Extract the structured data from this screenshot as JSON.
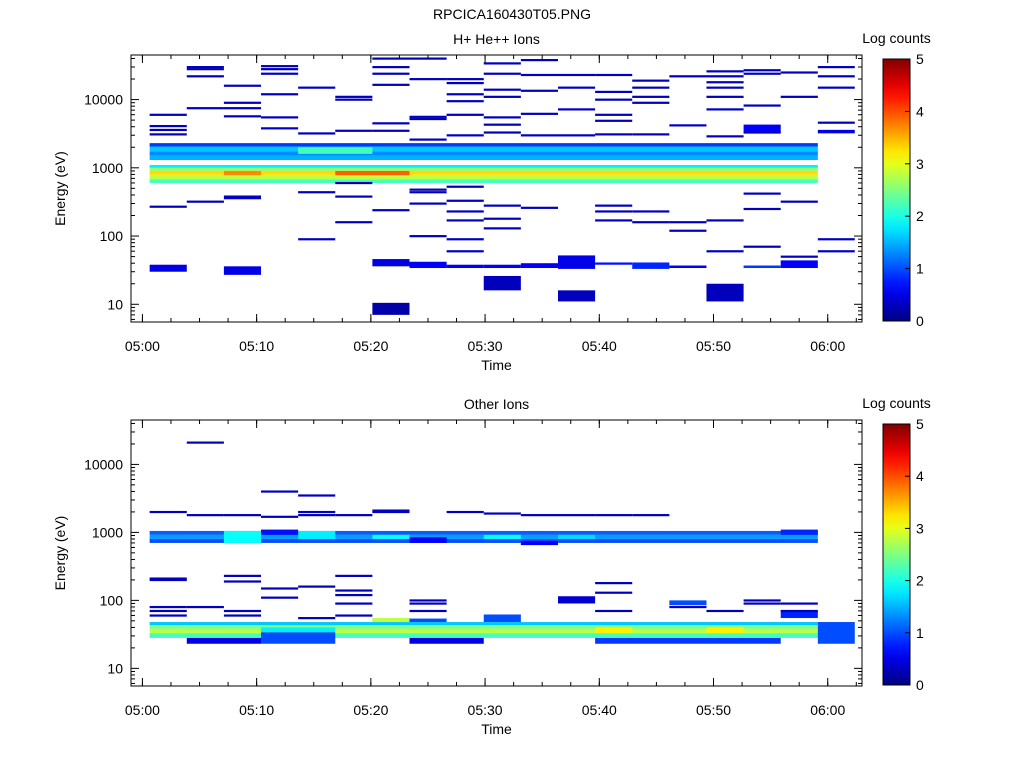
{
  "figure_title": "RPCICA160430T05.PNG",
  "chart_data": [
    {
      "type": "heatmap",
      "title": "H+ He++ Ions",
      "xlabel": "Time",
      "ylabel": "Energy (eV)",
      "x_scale": "time",
      "y_scale": "log",
      "xlim": [
        "04:59:00",
        "06:03:00"
      ],
      "ylim": [
        5.5,
        45000
      ],
      "x_ticks": [
        "05:00",
        "05:10",
        "05:20",
        "05:30",
        "05:40",
        "05:50",
        "06:00"
      ],
      "y_ticks": [
        10,
        100,
        1000,
        10000
      ],
      "y_tick_labels": [
        "10",
        "100",
        "1000",
        "10000"
      ],
      "colorbar": {
        "label": "Log counts",
        "range": [
          0,
          5
        ],
        "ticks": [
          "0",
          "1",
          "2",
          "3",
          "4",
          "5"
        ],
        "colormap": "jet"
      },
      "time_bins": [
        "05:02:15",
        "05:05:30",
        "05:08:45",
        "05:12:00",
        "05:15:15",
        "05:18:30",
        "05:21:45",
        "05:25:00",
        "05:28:15",
        "05:31:30",
        "05:34:45",
        "05:38:00",
        "05:41:15",
        "05:44:30",
        "05:47:45",
        "05:51:00",
        "05:54:15",
        "05:57:30",
        "06:00:45"
      ],
      "cells": [
        {
          "t0": 0,
          "t1": 18,
          "e": [
            600,
            680
          ],
          "z": 2.2
        },
        {
          "t0": 0,
          "t1": 18,
          "e": [
            680,
            790
          ],
          "z": 2.8
        },
        {
          "t0": 0,
          "t1": 18,
          "e": [
            790,
            900
          ],
          "z": 3.3
        },
        {
          "t0": 0,
          "t1": 18,
          "e": [
            900,
            1000
          ],
          "z": 2.6
        },
        {
          "t0": 0,
          "t1": 18,
          "e": [
            1000,
            1100
          ],
          "z": 1.8
        },
        {
          "t0": 0,
          "t1": 18,
          "e": [
            1300,
            1500
          ],
          "z": 1.5
        },
        {
          "t0": 0,
          "t1": 18,
          "e": [
            1500,
            1750
          ],
          "z": 1.3
        },
        {
          "t0": 0,
          "t1": 18,
          "e": [
            1750,
            2050
          ],
          "z": 1.6
        },
        {
          "t0": 0,
          "t1": 18,
          "e": [
            2050,
            2300
          ],
          "z": 0.9
        },
        {
          "t0": 2,
          "t1": 3,
          "e": [
            780,
            900
          ],
          "z": 3.7
        },
        {
          "t0": 5,
          "t1": 7,
          "e": [
            780,
            900
          ],
          "z": 3.9
        },
        {
          "t0": 4,
          "t1": 6,
          "e": [
            1600,
            2000
          ],
          "z": 2.2
        },
        {
          "t0": 0,
          "t1": 1,
          "e": [
            30,
            38
          ],
          "z": 0.5
        },
        {
          "t0": 2,
          "t1": 3,
          "e": [
            27,
            36
          ],
          "z": 0.5
        },
        {
          "t0": 6,
          "t1": 7,
          "e": [
            7,
            10.5
          ],
          "z": 0.2
        },
        {
          "t0": 6,
          "t1": 7,
          "e": [
            36,
            46
          ],
          "z": 0.5
        },
        {
          "t0": 7,
          "t1": 8,
          "e": [
            34,
            42
          ],
          "z": 0.6
        },
        {
          "t0": 8,
          "t1": 9,
          "e": [
            34,
            38
          ],
          "z": 0.6
        },
        {
          "t0": 9,
          "t1": 10,
          "e": [
            16,
            26
          ],
          "z": 0.3
        },
        {
          "t0": 9,
          "t1": 10,
          "e": [
            34,
            38
          ],
          "z": 0.6
        },
        {
          "t0": 10,
          "t1": 11,
          "e": [
            34,
            40
          ],
          "z": 0.6
        },
        {
          "t0": 11,
          "t1": 12,
          "e": [
            11,
            16
          ],
          "z": 0.3
        },
        {
          "t0": 11,
          "t1": 12,
          "e": [
            33,
            52
          ],
          "z": 0.5
        },
        {
          "t0": 12,
          "t1": 13,
          "e": [
            38,
            41
          ],
          "z": 0.7
        },
        {
          "t0": 13,
          "t1": 14,
          "e": [
            33,
            41
          ],
          "z": 0.8
        },
        {
          "t0": 14,
          "t1": 15,
          "e": [
            34,
            37
          ],
          "z": 0.6
        },
        {
          "t0": 15,
          "t1": 16,
          "e": [
            11,
            20
          ],
          "z": 0.3
        },
        {
          "t0": 16,
          "t1": 17,
          "e": [
            34,
            37
          ],
          "z": 0.9
        },
        {
          "t0": 17,
          "t1": 18,
          "e": [
            34,
            44
          ],
          "z": 0.6
        },
        {
          "t0": 16,
          "t1": 17,
          "e": [
            3300,
            4300
          ],
          "z": 0.6
        },
        {
          "t0": 18,
          "t1": 19,
          "e": [
            3200,
            3600
          ],
          "z": 0.5
        }
      ],
      "lines": [
        [
          0,
          270
        ],
        [
          0,
          3100
        ],
        [
          0,
          3600
        ],
        [
          0,
          4100
        ],
        [
          0,
          6000
        ],
        [
          1,
          320
        ],
        [
          1,
          7500
        ],
        [
          1,
          22000
        ],
        [
          1,
          28000
        ],
        [
          1,
          30000
        ],
        [
          2,
          360
        ],
        [
          2,
          380
        ],
        [
          2,
          5700
        ],
        [
          2,
          7500
        ],
        [
          2,
          9000
        ],
        [
          2,
          16000
        ],
        [
          3,
          3800
        ],
        [
          3,
          5500
        ],
        [
          3,
          12000
        ],
        [
          3,
          24000
        ],
        [
          3,
          28000
        ],
        [
          3,
          31000
        ],
        [
          4,
          90
        ],
        [
          4,
          440
        ],
        [
          4,
          3200
        ],
        [
          4,
          15000
        ],
        [
          5,
          160
        ],
        [
          5,
          380
        ],
        [
          5,
          3500
        ],
        [
          5,
          10000
        ],
        [
          5,
          11000
        ],
        [
          5,
          600
        ],
        [
          6,
          240
        ],
        [
          6,
          3500
        ],
        [
          6,
          4500
        ],
        [
          6,
          16500
        ],
        [
          6,
          24000
        ],
        [
          6,
          30000
        ],
        [
          6,
          40000
        ],
        [
          7,
          100
        ],
        [
          7,
          300
        ],
        [
          7,
          440
        ],
        [
          7,
          480
        ],
        [
          7,
          2600
        ],
        [
          7,
          5200
        ],
        [
          7,
          5600
        ],
        [
          7,
          20000
        ],
        [
          7,
          40000
        ],
        [
          8,
          60
        ],
        [
          8,
          90
        ],
        [
          8,
          170
        ],
        [
          8,
          230
        ],
        [
          8,
          330
        ],
        [
          8,
          530
        ],
        [
          8,
          3000
        ],
        [
          8,
          6000
        ],
        [
          8,
          9500
        ],
        [
          8,
          12000
        ],
        [
          8,
          17500
        ],
        [
          8,
          20000
        ],
        [
          9,
          130
        ],
        [
          9,
          180
        ],
        [
          9,
          280
        ],
        [
          9,
          3300
        ],
        [
          9,
          4300
        ],
        [
          9,
          5500
        ],
        [
          9,
          11000
        ],
        [
          9,
          14000
        ],
        [
          9,
          24000
        ],
        [
          9,
          34000
        ],
        [
          10,
          260
        ],
        [
          10,
          3000
        ],
        [
          10,
          6200
        ],
        [
          10,
          13500
        ],
        [
          10,
          23000
        ],
        [
          10,
          38000
        ],
        [
          11,
          3000
        ],
        [
          11,
          7200
        ],
        [
          11,
          15000
        ],
        [
          11,
          23000
        ],
        [
          12,
          170
        ],
        [
          12,
          230
        ],
        [
          12,
          280
        ],
        [
          12,
          3100
        ],
        [
          12,
          4900
        ],
        [
          12,
          6000
        ],
        [
          12,
          10000
        ],
        [
          12,
          13000
        ],
        [
          12,
          23000
        ],
        [
          13,
          160
        ],
        [
          13,
          230
        ],
        [
          13,
          3100
        ],
        [
          13,
          9000
        ],
        [
          13,
          11000
        ],
        [
          13,
          15000
        ],
        [
          13,
          19000
        ],
        [
          14,
          160
        ],
        [
          14,
          120
        ],
        [
          14,
          4200
        ],
        [
          14,
          22000
        ],
        [
          15,
          60
        ],
        [
          15,
          170
        ],
        [
          15,
          2900
        ],
        [
          15,
          7200
        ],
        [
          15,
          11000
        ],
        [
          15,
          15000
        ],
        [
          15,
          18000
        ],
        [
          15,
          22000
        ],
        [
          15,
          26000
        ],
        [
          16,
          70
        ],
        [
          16,
          250
        ],
        [
          16,
          420
        ],
        [
          16,
          3300
        ],
        [
          16,
          8200
        ],
        [
          16,
          24000
        ],
        [
          16,
          27000
        ],
        [
          17,
          50
        ],
        [
          17,
          320
        ],
        [
          17,
          11000
        ],
        [
          17,
          25000
        ],
        [
          18,
          60
        ],
        [
          18,
          90
        ],
        [
          18,
          4600
        ],
        [
          18,
          15000
        ],
        [
          18,
          22000
        ],
        [
          18,
          30000
        ]
      ]
    },
    {
      "type": "heatmap",
      "title": "Other Ions",
      "xlabel": "Time",
      "ylabel": "Energy (eV)",
      "x_scale": "time",
      "y_scale": "log",
      "xlim": [
        "04:59:00",
        "06:03:00"
      ],
      "ylim": [
        5.5,
        45000
      ],
      "x_ticks": [
        "05:00",
        "05:10",
        "05:20",
        "05:30",
        "05:40",
        "05:50",
        "06:00"
      ],
      "y_ticks": [
        10,
        100,
        1000,
        10000
      ],
      "y_tick_labels": [
        "10",
        "100",
        "1000",
        "10000"
      ],
      "colorbar": {
        "label": "Log counts",
        "range": [
          0,
          5
        ],
        "ticks": [
          "0",
          "1",
          "2",
          "3",
          "4",
          "5"
        ],
        "colormap": "jet"
      },
      "time_bins": [
        "05:02:15",
        "05:05:30",
        "05:08:45",
        "05:12:00",
        "05:15:15",
        "05:18:30",
        "05:21:45",
        "05:25:00",
        "05:28:15",
        "05:31:30",
        "05:34:45",
        "05:38:00",
        "05:41:15",
        "05:44:30",
        "05:47:45",
        "05:51:00",
        "05:54:15",
        "05:57:30",
        "06:00:45"
      ],
      "cells": [
        {
          "t0": 0,
          "t1": 18,
          "e": [
            700,
            800
          ],
          "z": 1.0
        },
        {
          "t0": 0,
          "t1": 18,
          "e": [
            800,
            920
          ],
          "z": 1.4
        },
        {
          "t0": 0,
          "t1": 18,
          "e": [
            920,
            1050
          ],
          "z": 1.1
        },
        {
          "t0": 2,
          "t1": 3,
          "e": [
            700,
            1050
          ],
          "z": 1.9
        },
        {
          "t0": 4,
          "t1": 5,
          "e": [
            800,
            1050
          ],
          "z": 1.8
        },
        {
          "t0": 6,
          "t1": 7,
          "e": [
            800,
            920
          ],
          "z": 1.9
        },
        {
          "t0": 9,
          "t1": 10,
          "e": [
            800,
            920
          ],
          "z": 1.9
        },
        {
          "t0": 11,
          "t1": 12,
          "e": [
            800,
            920
          ],
          "z": 1.7
        },
        {
          "t0": 3,
          "t1": 4,
          "e": [
            920,
            1100
          ],
          "z": 0.7
        },
        {
          "t0": 7,
          "t1": 8,
          "e": [
            700,
            850
          ],
          "z": 0.6
        },
        {
          "t0": 10,
          "t1": 11,
          "e": [
            650,
            750
          ],
          "z": 0.6
        },
        {
          "t0": 17,
          "t1": 18,
          "e": [
            920,
            1100
          ],
          "z": 0.8
        },
        {
          "t0": 0,
          "t1": 18,
          "e": [
            28,
            33
          ],
          "z": 2.2
        },
        {
          "t0": 0,
          "t1": 18,
          "e": [
            33,
            38
          ],
          "z": 2.8
        },
        {
          "t0": 0,
          "t1": 18,
          "e": [
            38,
            43
          ],
          "z": 2.5
        },
        {
          "t0": 0,
          "t1": 18,
          "e": [
            43,
            48
          ],
          "z": 1.6
        },
        {
          "t0": 1,
          "t1": 3,
          "e": [
            23,
            28
          ],
          "z": 0.5
        },
        {
          "t0": 3,
          "t1": 5,
          "e": [
            23,
            34
          ],
          "z": 1.0
        },
        {
          "t0": 3,
          "t1": 5,
          "e": [
            34,
            40
          ],
          "z": 1.8
        },
        {
          "t0": 6,
          "t1": 7,
          "e": [
            48,
            55
          ],
          "z": 2.8
        },
        {
          "t0": 7,
          "t1": 8,
          "e": [
            48,
            54
          ],
          "z": 1.0
        },
        {
          "t0": 9,
          "t1": 10,
          "e": [
            48,
            62
          ],
          "z": 1.0
        },
        {
          "t0": 7,
          "t1": 9,
          "e": [
            23,
            28
          ],
          "z": 0.5
        },
        {
          "t0": 12,
          "t1": 17,
          "e": [
            23,
            28
          ],
          "z": 0.9
        },
        {
          "t0": 12,
          "t1": 13,
          "e": [
            33,
            40
          ],
          "z": 3.2
        },
        {
          "t0": 15,
          "t1": 16,
          "e": [
            33,
            40
          ],
          "z": 3.2
        },
        {
          "t0": 11,
          "t1": 12,
          "e": [
            90,
            115
          ],
          "z": 0.4
        },
        {
          "t0": 14,
          "t1": 15,
          "e": [
            85,
            100
          ],
          "z": 1.0
        },
        {
          "t0": 17,
          "t1": 18,
          "e": [
            55,
            70
          ],
          "z": 0.8
        },
        {
          "t0": 18,
          "t1": 19,
          "e": [
            23,
            48
          ],
          "z": 1.0
        }
      ],
      "lines": [
        [
          0,
          70
        ],
        [
          0,
          80
        ],
        [
          0,
          200
        ],
        [
          0,
          210
        ],
        [
          0,
          2000
        ],
        [
          0,
          60
        ],
        [
          1,
          80
        ],
        [
          1,
          1800
        ],
        [
          1,
          21000
        ],
        [
          2,
          60
        ],
        [
          2,
          70
        ],
        [
          2,
          190
        ],
        [
          2,
          230
        ],
        [
          2,
          1800
        ],
        [
          3,
          110
        ],
        [
          3,
          150
        ],
        [
          3,
          1700
        ],
        [
          3,
          4000
        ],
        [
          4,
          55
        ],
        [
          4,
          160
        ],
        [
          4,
          1800
        ],
        [
          4,
          2000
        ],
        [
          4,
          3500
        ],
        [
          5,
          60
        ],
        [
          5,
          90
        ],
        [
          5,
          120
        ],
        [
          5,
          140
        ],
        [
          5,
          230
        ],
        [
          5,
          1800
        ],
        [
          6,
          2000
        ],
        [
          6,
          2100
        ],
        [
          7,
          70
        ],
        [
          7,
          90
        ],
        [
          7,
          100
        ],
        [
          8,
          2000
        ],
        [
          9,
          1900
        ],
        [
          10,
          1800
        ],
        [
          11,
          1800
        ],
        [
          12,
          70
        ],
        [
          12,
          130
        ],
        [
          12,
          180
        ],
        [
          12,
          1800
        ],
        [
          13,
          1800
        ],
        [
          14,
          80
        ],
        [
          15,
          70
        ],
        [
          16,
          90
        ],
        [
          16,
          100
        ],
        [
          17,
          70
        ],
        [
          17,
          90
        ]
      ]
    }
  ]
}
